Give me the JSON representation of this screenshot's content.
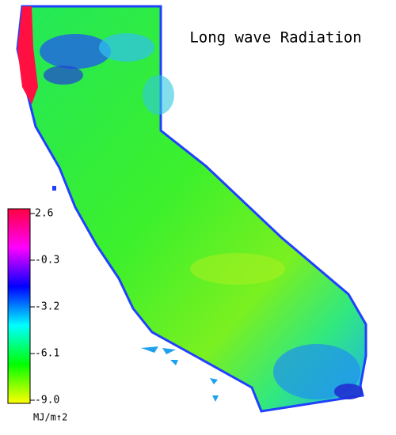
{
  "chart_data": {
    "type": "map",
    "title": "Long wave Radiation",
    "colorbar_label": "MJ/m↑2",
    "clim": [
      -9,
      2.6
    ],
    "colorbar_ticks": [
      2.6,
      -0.3,
      -3.2,
      -6.1,
      {
        "value": -9,
        "label": "-9.0"
      }
    ],
    "colormap": [
      "#ffff00",
      "#00ff00",
      "#00ffff",
      "#0000ff",
      "#ff00ff",
      "#ff0040"
    ]
  }
}
